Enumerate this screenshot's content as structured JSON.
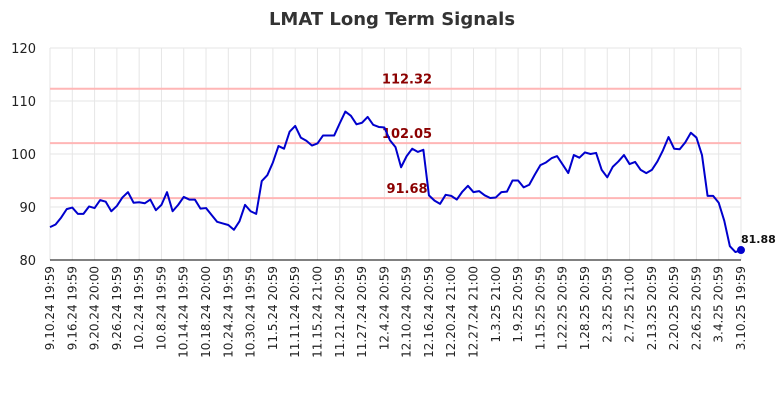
{
  "chart_data": {
    "type": "line",
    "title": "LMAT Long Term Signals",
    "ylim": [
      80,
      120
    ],
    "yticks": [
      "80",
      "90",
      "100",
      "110",
      "120"
    ],
    "xtick_labels": [
      "9.10.24 19:59",
      "9.16.24 19:59",
      "9.20.24 20:00",
      "9.26.24 19:59",
      "10.2.24 19:59",
      "10.8.24 19:59",
      "10.14.24 19:59",
      "10.18.24 20:00",
      "10.24.24 19:59",
      "10.30.24 19:59",
      "11.5.24 20:59",
      "11.11.24 20:59",
      "11.15.24 21:00",
      "11.21.24 20:59",
      "11.27.24 20:59",
      "12.4.24 20:59",
      "12.10.24 20:59",
      "12.16.24 20:59",
      "12.20.24 21:00",
      "12.27.24 21:00",
      "1.3.25 21:00",
      "1.9.25 20:59",
      "1.15.25 20:59",
      "1.22.25 20:59",
      "1.28.25 20:59",
      "2.3.25 20:59",
      "2.7.25 21:00",
      "2.13.25 20:59",
      "2.20.25 20:59",
      "2.26.25 20:59",
      "3.4.25 20:59",
      "3.10.25 19:59"
    ],
    "grid": true,
    "line_color": "#0000cd",
    "level_color": "#ffb6b6",
    "level_label_color": "#8b0000",
    "levels": [
      {
        "label": "112.32",
        "value": 112.32
      },
      {
        "label": "102.05",
        "value": 102.05
      },
      {
        "label": "91.68",
        "value": 91.68
      }
    ],
    "last_value_label": "81.88",
    "series": [
      {
        "values": [
          86.2,
          86.7,
          88.0,
          89.6,
          89.9,
          88.7,
          88.7,
          90.1,
          89.8,
          91.3,
          91.0,
          89.2,
          90.2,
          91.8,
          92.8,
          90.8,
          90.9,
          90.7,
          91.4,
          89.4,
          90.4,
          92.8,
          89.2,
          90.4,
          91.9,
          91.4,
          91.4,
          89.7,
          89.8,
          88.5,
          87.2,
          86.9,
          86.6,
          85.7,
          87.3,
          90.4,
          89.2,
          88.7,
          94.9,
          96.0,
          98.4,
          101.5,
          101.0,
          104.2,
          105.3,
          103.1,
          102.5,
          101.6,
          102.0,
          103.5,
          103.5,
          103.5,
          105.8,
          108.0,
          107.2,
          105.6,
          105.9,
          107.0,
          105.5,
          105.1,
          105.0,
          102.6,
          101.3,
          97.5,
          99.6,
          101.0,
          100.4,
          100.8,
          92.2,
          91.2,
          90.6,
          92.3,
          92.1,
          91.4,
          92.9,
          94.0,
          92.8,
          93.0,
          92.2,
          91.7,
          91.8,
          92.8,
          92.9,
          95.0,
          95.0,
          93.7,
          94.2,
          96.1,
          97.9,
          98.4,
          99.2,
          99.6,
          98.0,
          96.4,
          99.8,
          99.3,
          100.3,
          100.0,
          100.2,
          97.0,
          95.6,
          97.6,
          98.6,
          99.8,
          98.1,
          98.5,
          97.0,
          96.4,
          97.0,
          98.6,
          100.7,
          103.2,
          101.0,
          100.9,
          102.2,
          104.0,
          103.1,
          99.8,
          92.1,
          92.1,
          90.8,
          87.4,
          82.6,
          81.5,
          81.88
        ]
      }
    ]
  }
}
